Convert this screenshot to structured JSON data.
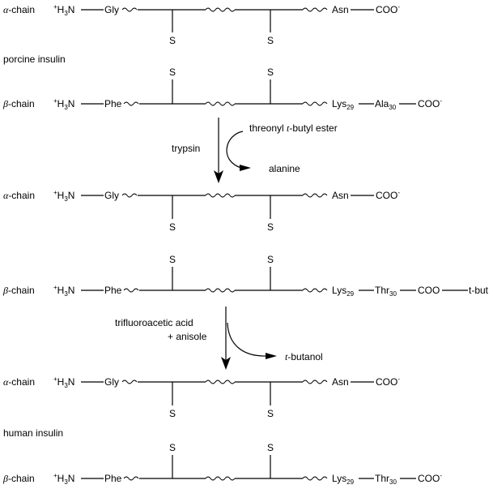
{
  "labels": {
    "alpha_symbol": "α",
    "beta_symbol": "β",
    "chain_suffix": "-chain",
    "n_terminus": "H",
    "n_terminus_sub": "3",
    "n_terminus_N": "N",
    "plus": "+",
    "gly": "Gly",
    "phe": "Phe",
    "asn": "Asn",
    "lys": "Lys",
    "lys_sub": "29",
    "ala": "Ala",
    "ala_sub": "30",
    "thr": "Thr",
    "thr_sub": "30",
    "coo": "COO",
    "minus": "-",
    "sulfur": "S",
    "t_but": "t-but"
  },
  "blocks": [
    {
      "name": "porcine insulin"
    },
    {
      "name": ""
    },
    {
      "name": "human insulin"
    }
  ],
  "arrows": [
    {
      "reagent": "trypsin",
      "input_prefix": "threonyl ",
      "input_italic": "t",
      "input_suffix": "-butyl ester",
      "output_prefix": "",
      "output_italic": "",
      "output_suffix": "alanine"
    },
    {
      "reagent_line1": "trifluoroacetic acid",
      "reagent_line2": "+ anisole",
      "output_italic": "t",
      "output_suffix": "-butanol"
    }
  ]
}
